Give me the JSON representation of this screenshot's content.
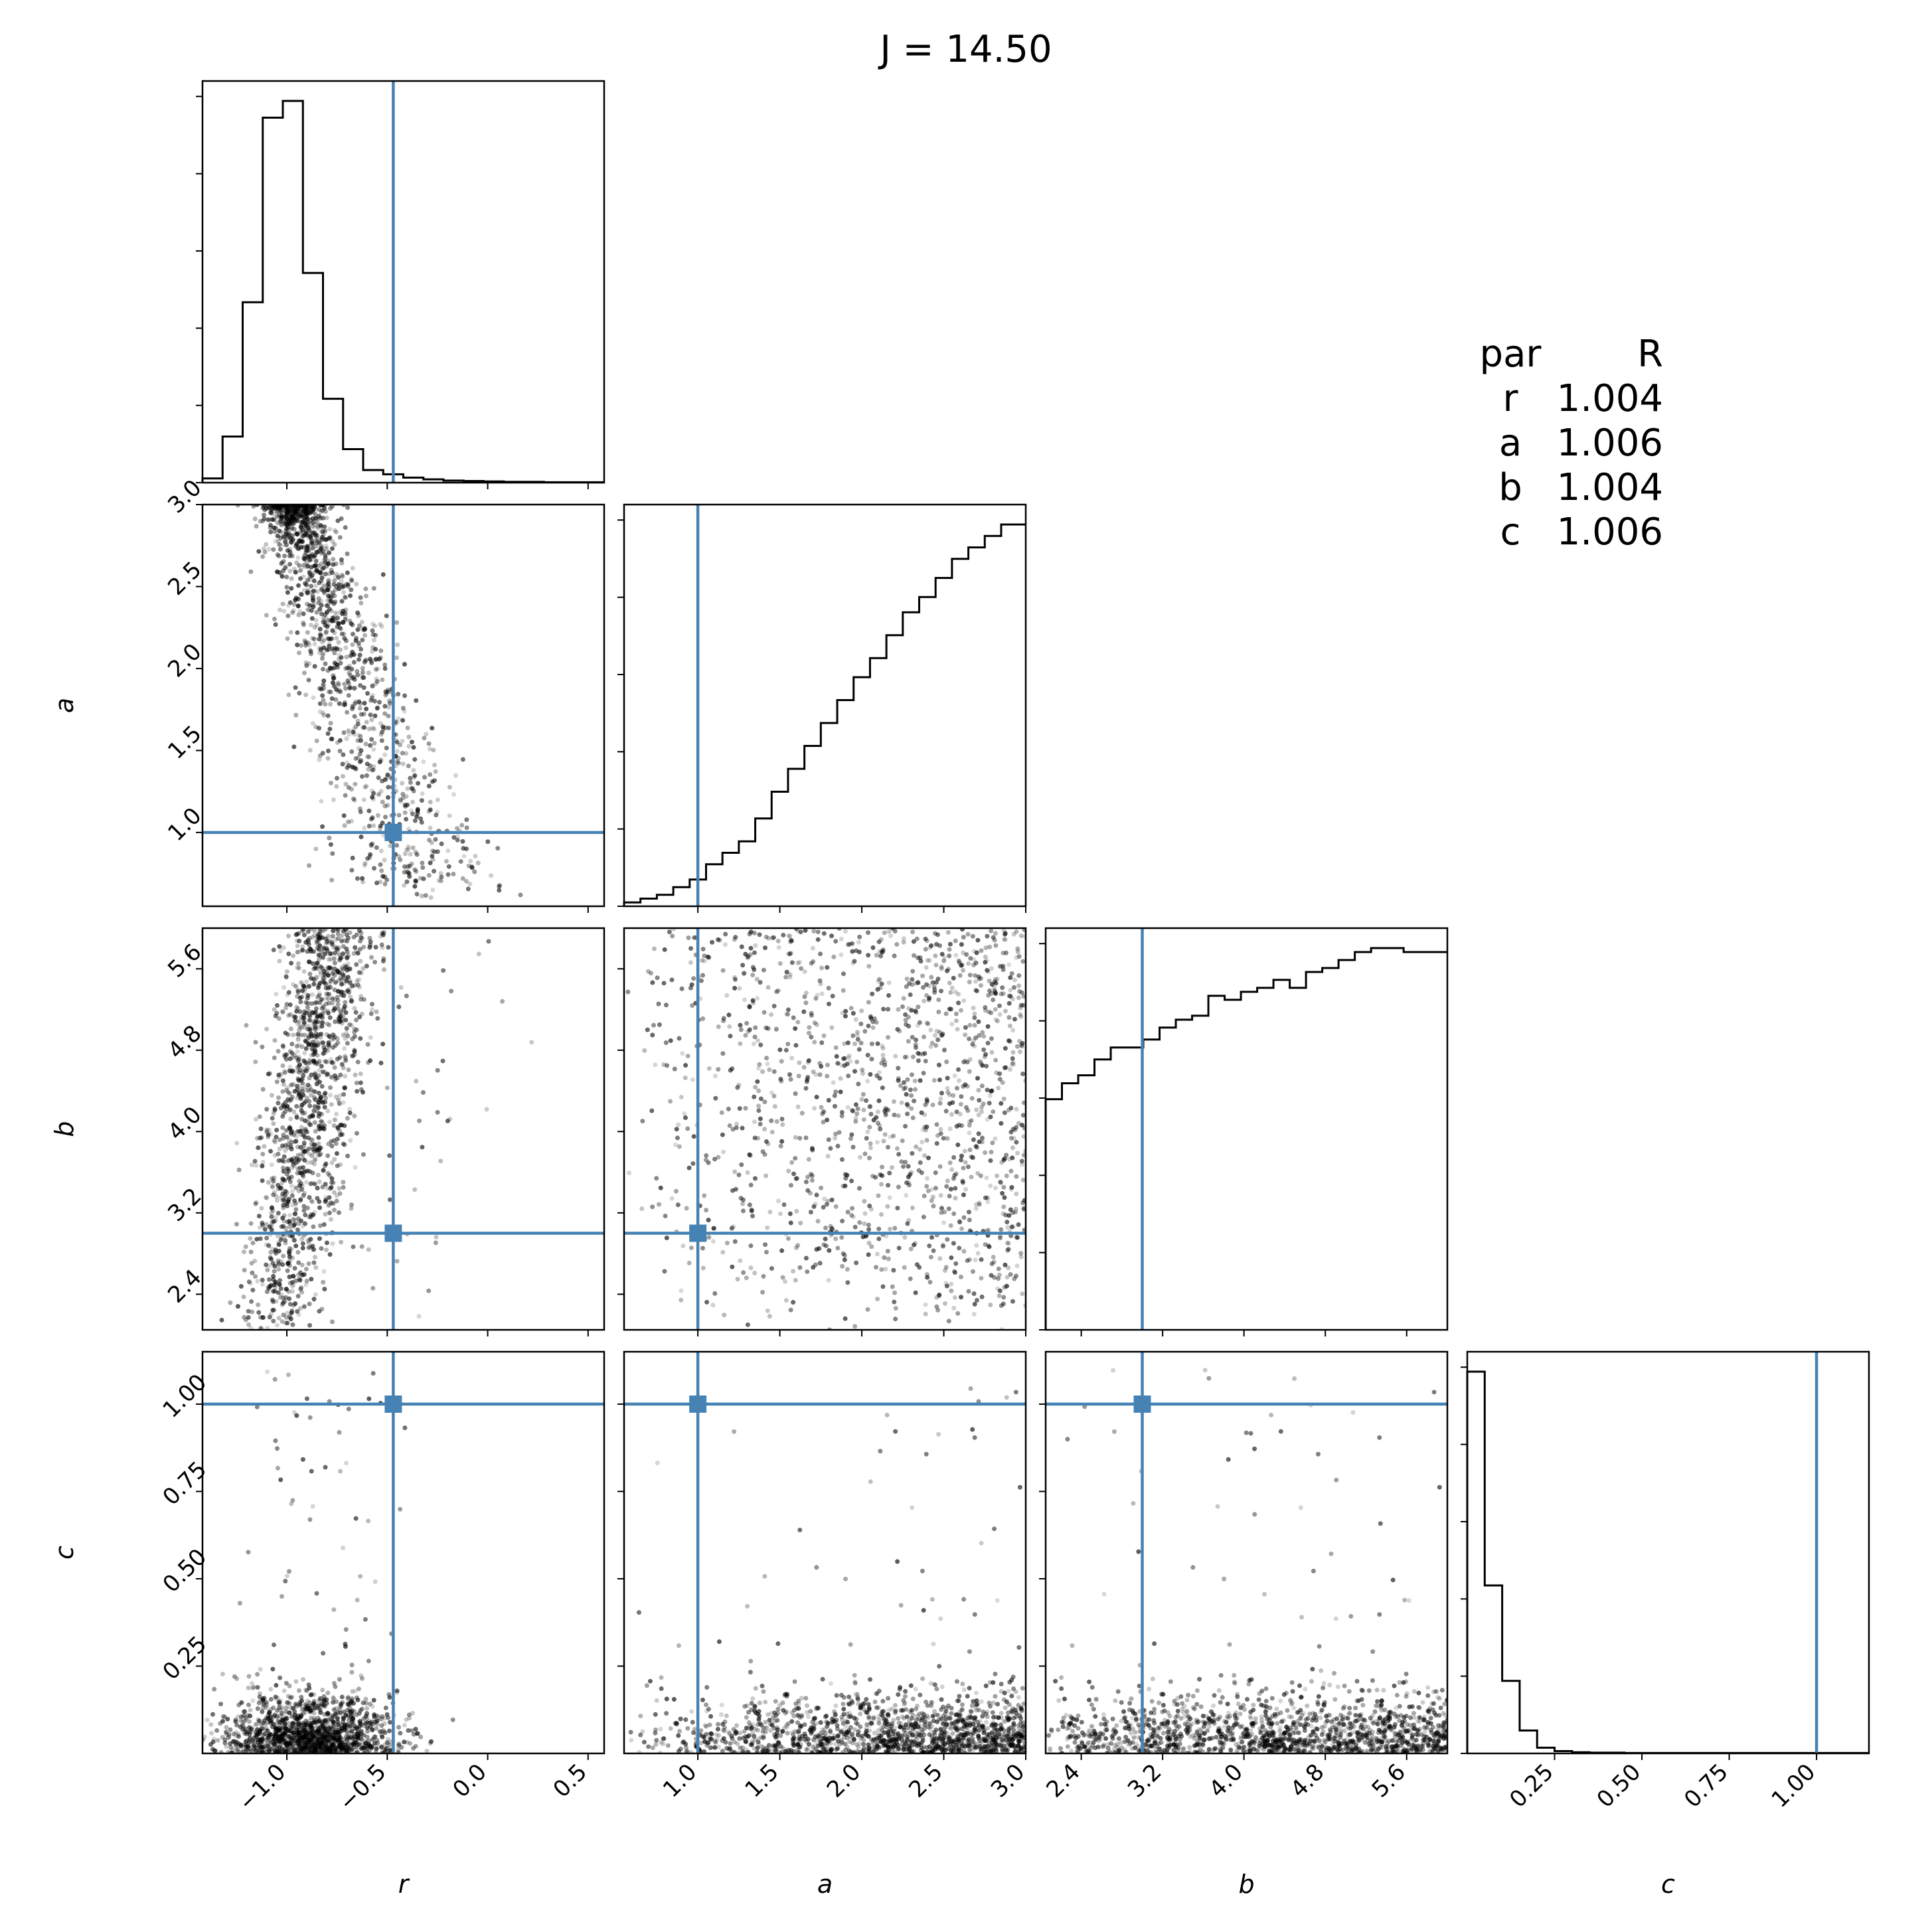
{
  "title": "J = 14.50",
  "stats_table": {
    "header": [
      "par",
      "R"
    ],
    "rows": [
      {
        "par": "r",
        "R": "1.004"
      },
      {
        "par": "a",
        "R": "1.006"
      },
      {
        "par": "b",
        "R": "1.004"
      },
      {
        "par": "c",
        "R": "1.006"
      }
    ]
  },
  "chart_data": {
    "type": "corner",
    "parameters": [
      "r",
      "a",
      "b",
      "c"
    ],
    "labels": [
      "r",
      "a",
      "b",
      "c"
    ],
    "truths": [
      -0.47,
      1.0,
      3.0,
      1.0
    ],
    "truth_color": "#4682b4",
    "ranges": {
      "r": [
        -1.42,
        0.58
      ],
      "a": [
        0.55,
        3.0
      ],
      "b": [
        2.05,
        6.0
      ],
      "c": [
        0.0,
        1.15
      ]
    },
    "ticks": {
      "r": [
        "-1.0",
        "-0.5",
        "0.0",
        "0.5"
      ],
      "a": [
        "1.0",
        "1.5",
        "2.0",
        "2.5",
        "3.0"
      ],
      "b": [
        "2.4",
        "3.2",
        "4.0",
        "4.8",
        "5.6"
      ],
      "c": [
        "0.25",
        "0.50",
        "0.75",
        "1.00"
      ]
    },
    "histograms": {
      "r": {
        "edges": [
          -1.42,
          -1.32,
          -1.22,
          -1.12,
          -1.02,
          -0.92,
          -0.82,
          -0.72,
          -0.62,
          -0.52,
          -0.42,
          -0.32,
          -0.22,
          -0.12,
          -0.02,
          0.08,
          0.18,
          0.28,
          0.38,
          0.48,
          0.58
        ],
        "counts": [
          0.01,
          0.11,
          0.43,
          0.87,
          0.91,
          0.5,
          0.2,
          0.08,
          0.03,
          0.02,
          0.012,
          0.008,
          0.005,
          0.004,
          0.003,
          0.002,
          0.002,
          0.001,
          0.001,
          0.001
        ]
      },
      "a": {
        "edges": [
          0.55,
          0.65,
          0.75,
          0.85,
          0.95,
          1.05,
          1.15,
          1.25,
          1.35,
          1.45,
          1.55,
          1.65,
          1.75,
          1.85,
          1.95,
          2.05,
          2.15,
          2.25,
          2.35,
          2.45,
          2.55,
          2.65,
          2.75,
          2.85,
          2.95,
          3.0
        ],
        "counts": [
          0.01,
          0.02,
          0.03,
          0.05,
          0.07,
          0.11,
          0.14,
          0.17,
          0.23,
          0.3,
          0.36,
          0.42,
          0.48,
          0.54,
          0.6,
          0.65,
          0.71,
          0.77,
          0.81,
          0.86,
          0.91,
          0.94,
          0.97,
          1.0,
          1.0
        ]
      },
      "b": {
        "edges": [
          2.05,
          2.21,
          2.37,
          2.53,
          2.69,
          2.85,
          3.01,
          3.17,
          3.33,
          3.49,
          3.65,
          3.81,
          3.97,
          4.13,
          4.29,
          4.45,
          4.61,
          4.77,
          4.93,
          5.09,
          5.25,
          5.41,
          5.57,
          5.73,
          5.89,
          6.0
        ],
        "counts": [
          0.58,
          0.62,
          0.64,
          0.68,
          0.71,
          0.71,
          0.73,
          0.76,
          0.78,
          0.79,
          0.84,
          0.83,
          0.85,
          0.86,
          0.88,
          0.86,
          0.9,
          0.91,
          0.93,
          0.95,
          0.96,
          0.96,
          0.95,
          0.95,
          0.95
        ]
      },
      "c": {
        "edges": [
          0.0,
          0.05,
          0.1,
          0.15,
          0.2,
          0.25,
          0.3,
          0.35,
          0.4,
          0.45,
          0.5,
          0.6,
          0.7,
          0.8,
          0.9,
          1.0,
          1.15
        ],
        "counts": [
          1.0,
          0.44,
          0.19,
          0.06,
          0.015,
          0.006,
          0.003,
          0.002,
          0.002,
          0.001,
          0.001,
          0.001,
          0.001,
          0.001,
          0.001,
          0.001
        ]
      }
    }
  }
}
